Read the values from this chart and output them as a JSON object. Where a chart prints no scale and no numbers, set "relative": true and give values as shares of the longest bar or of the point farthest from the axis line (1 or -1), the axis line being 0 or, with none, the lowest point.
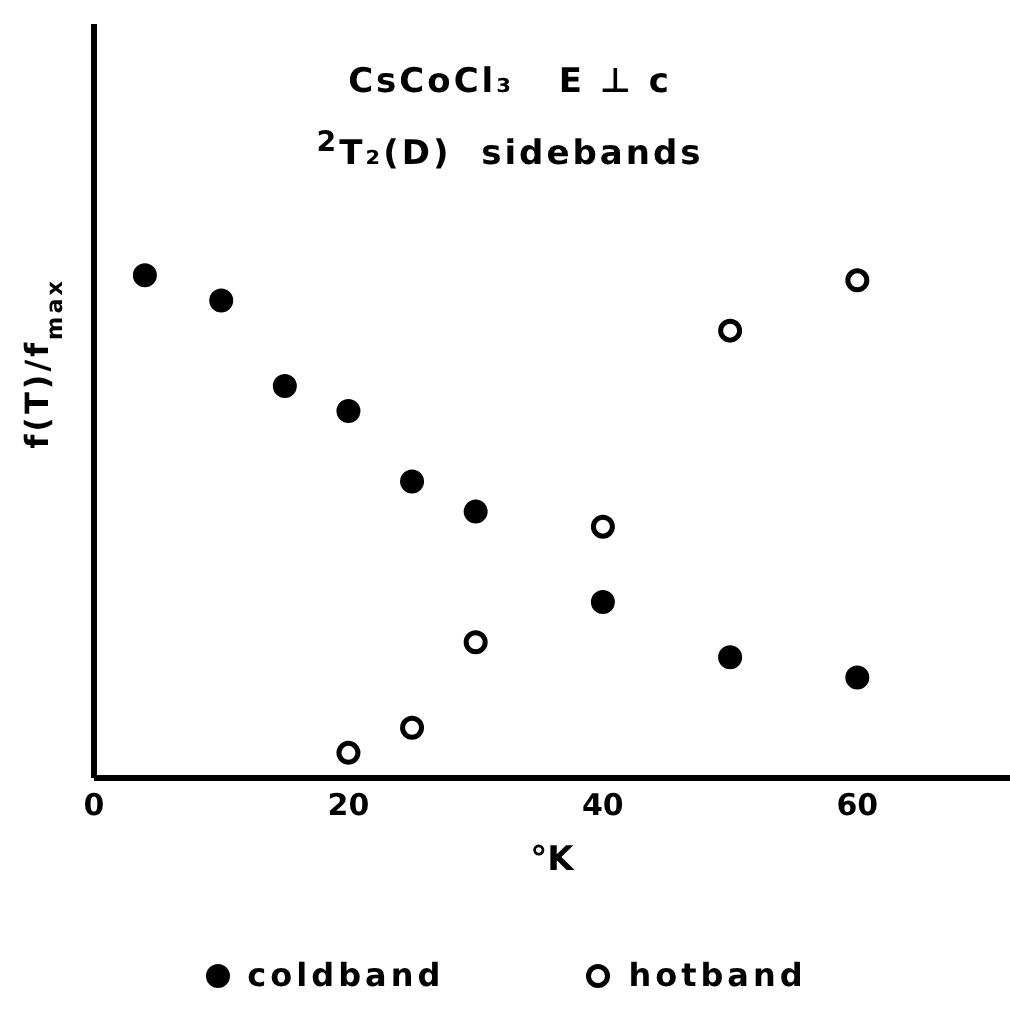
{
  "chart_data": {
    "type": "scatter",
    "title": "CsCoCl₃   E ⊥ c",
    "subtitle": "$^{2}$T₂(D)  sidebands",
    "xlabel": "°K",
    "ylabel": "f(T)/f$_{max}$",
    "relative": true,
    "xlim": [
      0,
      72
    ],
    "xticks": [
      0,
      20,
      40,
      60
    ],
    "legend": "bottom",
    "marker": "circle",
    "grid": false,
    "series": [
      {
        "name": "coldband",
        "color": "#000000",
        "x": [
          4,
          10,
          15,
          20,
          25,
          30,
          40,
          50,
          60
        ],
        "values": [
          1,
          0.95,
          0.78,
          0.73,
          0.59,
          0.53,
          0.35,
          0.24,
          0.2
        ]
      },
      {
        "name": "hotband",
        "color": "#ffffff",
        "x": [
          20,
          25,
          30,
          40,
          50,
          60
        ],
        "values": [
          0.05,
          0.1,
          0.27,
          0.5,
          0.89,
          0.99
        ]
      }
    ]
  }
}
